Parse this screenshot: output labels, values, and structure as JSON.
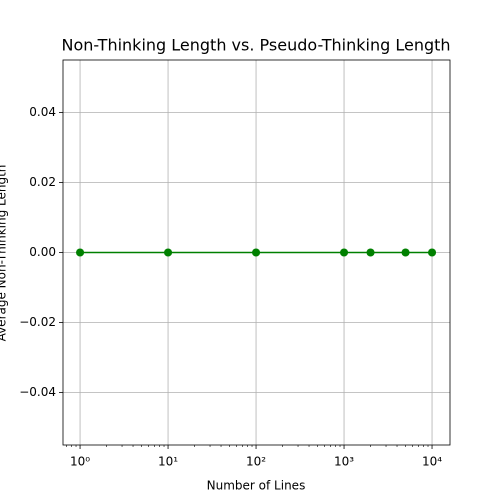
{
  "chart_data": {
    "type": "line",
    "title": "Non-Thinking Length vs. Pseudo-Thinking Length",
    "x_label": "Number of Lines",
    "y_label": "Average Non-Thinking Length",
    "x": [
      1,
      10,
      100,
      1000,
      2000,
      5000,
      10000
    ],
    "series": [
      {
        "name": "Non-Thinking Length",
        "color": "#008000",
        "values": [
          0,
          0,
          0,
          0,
          0,
          0,
          0
        ]
      }
    ],
    "x_log": true,
    "xlim": [
      0.64,
      16000
    ],
    "xticks": [
      {
        "value": 1,
        "label": "10⁰"
      },
      {
        "value": 10,
        "label": "10¹"
      },
      {
        "value": 100,
        "label": "10²"
      },
      {
        "value": 1000,
        "label": "10³"
      },
      {
        "value": 10000,
        "label": "10⁴"
      }
    ],
    "ylim": [
      -0.055,
      0.055
    ],
    "yticks": [
      {
        "value": -0.04,
        "label": "−0.04"
      },
      {
        "value": -0.02,
        "label": "−0.02"
      },
      {
        "value": 0,
        "label": "0.00"
      },
      {
        "value": 0.02,
        "label": "0.02"
      },
      {
        "value": 0.04,
        "label": "0.04"
      }
    ],
    "grid": true
  }
}
